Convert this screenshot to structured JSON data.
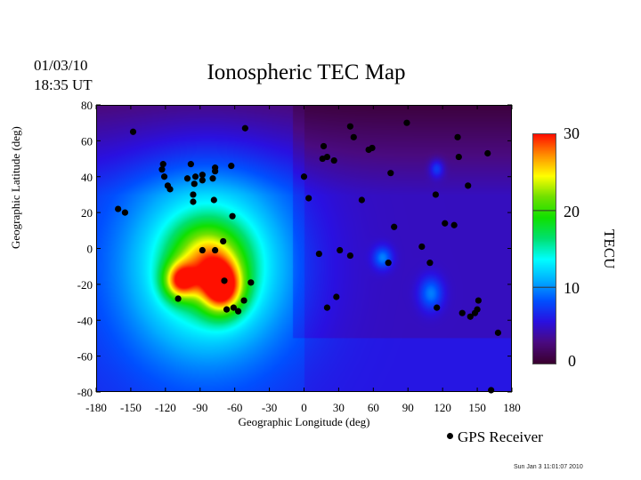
{
  "header": {
    "date": "01/03/10",
    "time": "18:35 UT",
    "title": "Ionospheric TEC Map"
  },
  "footer": {
    "legend_label": "GPS Receiver",
    "timestamp": "Sun Jan  3 11:01:07 2010"
  },
  "chart_data": {
    "type": "heatmap",
    "title": "Ionospheric TEC Map",
    "xlabel": "Geographic Longitude (deg)",
    "ylabel": "Geographic Latitude (deg)",
    "xlim": [
      -180,
      180
    ],
    "ylim": [
      -80,
      80
    ],
    "xticks": [
      "-180",
      "-150",
      "-120",
      "-90",
      "-60",
      "-30",
      "0",
      "30",
      "60",
      "90",
      "120",
      "150",
      "180"
    ],
    "yticks": [
      "80",
      "60",
      "40",
      "20",
      "0",
      "-20",
      "-40",
      "-60",
      "-80"
    ],
    "colorbar": {
      "label": "TECU",
      "range": [
        0,
        30
      ],
      "ticks": [
        "30",
        "20",
        "10",
        "0"
      ],
      "colormap": [
        "#3a0030",
        "#4a0a80",
        "#2a10e0",
        "#0050ff",
        "#00b0ff",
        "#00ffff",
        "#00e070",
        "#10e000",
        "#70e000",
        "#ffff00",
        "#ff9000",
        "#ff1000"
      ]
    },
    "tec_features": [
      {
        "lon": -72,
        "lat": -22,
        "tec": 30
      },
      {
        "lon": -108,
        "lat": -18,
        "tec": 27
      },
      {
        "lon": -85,
        "lat": -5,
        "tec": 22
      },
      {
        "lon": -80,
        "lat": -10,
        "tec": 18
      },
      {
        "lon": 110,
        "lat": -25,
        "tec": 11
      },
      {
        "lon": 68,
        "lat": -5,
        "tec": 11
      },
      {
        "lon": 115,
        "lat": 45,
        "tec": 10
      }
    ],
    "receivers": [
      [
        -148,
        65
      ],
      [
        -51,
        67
      ],
      [
        -122,
        47
      ],
      [
        -123,
        44
      ],
      [
        -121,
        40
      ],
      [
        -118,
        35
      ],
      [
        -116,
        33
      ],
      [
        -161,
        22
      ],
      [
        -155,
        20
      ],
      [
        -98,
        47
      ],
      [
        -101,
        39
      ],
      [
        -95,
        36
      ],
      [
        -94,
        40
      ],
      [
        -88,
        41
      ],
      [
        -88,
        38
      ],
      [
        -77,
        45
      ],
      [
        -77,
        43
      ],
      [
        -79,
        39
      ],
      [
        -63,
        46
      ],
      [
        -96,
        30
      ],
      [
        -96,
        26
      ],
      [
        -78,
        27
      ],
      [
        -62,
        18
      ],
      [
        -70,
        4
      ],
      [
        -88,
        -1
      ],
      [
        -77,
        -1
      ],
      [
        -69,
        -18
      ],
      [
        -46,
        -19
      ],
      [
        -109,
        -28
      ],
      [
        -67,
        -34
      ],
      [
        -61,
        -33
      ],
      [
        -57,
        -35
      ],
      [
        -52,
        -29
      ],
      [
        4,
        28
      ],
      [
        0,
        40
      ],
      [
        17,
        57
      ],
      [
        16,
        50
      ],
      [
        20,
        51
      ],
      [
        26,
        49
      ],
      [
        40,
        68
      ],
      [
        43,
        62
      ],
      [
        56,
        55
      ],
      [
        59,
        56
      ],
      [
        75,
        42
      ],
      [
        89,
        70
      ],
      [
        50,
        27
      ],
      [
        78,
        12
      ],
      [
        13,
        -3
      ],
      [
        31,
        -1
      ],
      [
        40,
        -4
      ],
      [
        73,
        -8
      ],
      [
        20,
        -33
      ],
      [
        28,
        -27
      ],
      [
        114,
        30
      ],
      [
        134,
        51
      ],
      [
        142,
        35
      ],
      [
        122,
        14
      ],
      [
        130,
        13
      ],
      [
        133,
        62
      ],
      [
        159,
        53
      ],
      [
        102,
        1
      ],
      [
        109,
        -8
      ],
      [
        115,
        -33
      ],
      [
        137,
        -36
      ],
      [
        144,
        -38
      ],
      [
        148,
        -36
      ],
      [
        150,
        -34
      ],
      [
        151,
        -29
      ],
      [
        168,
        -47
      ],
      [
        162,
        -79
      ]
    ]
  }
}
